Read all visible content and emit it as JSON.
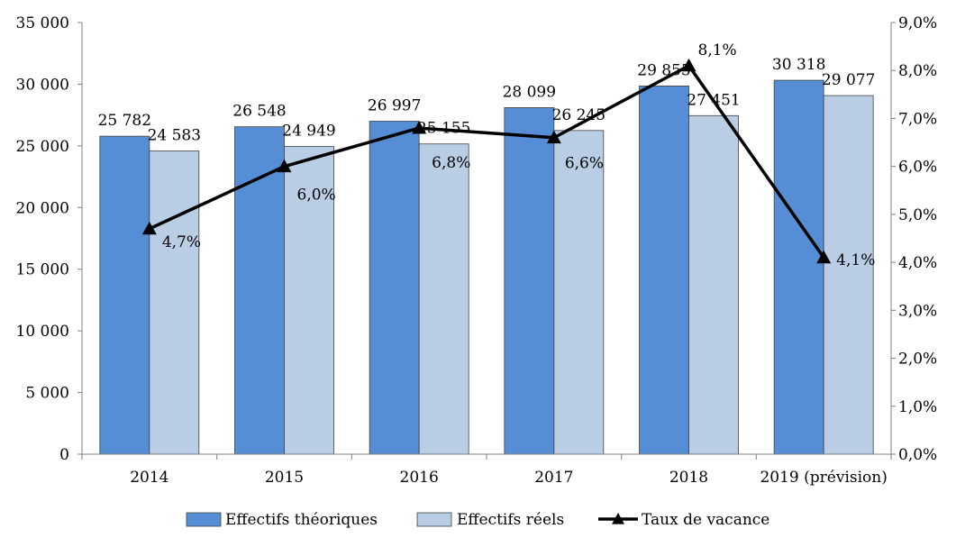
{
  "chart_data": {
    "type": "bar",
    "categories": [
      "2014",
      "2015",
      "2016",
      "2017",
      "2018",
      "2019 (prévision)"
    ],
    "series": [
      {
        "name": "Effectifs théoriques",
        "kind": "bar",
        "axis": "left",
        "color": "#558ED5",
        "values": [
          25782,
          26548,
          26997,
          28099,
          29855,
          30318
        ],
        "labels": [
          "25 782",
          "26 548",
          "26 997",
          "28 099",
          "29 855",
          "30 318"
        ]
      },
      {
        "name": "Effectifs réels",
        "kind": "bar",
        "axis": "left",
        "color": "#B9CDE5",
        "values": [
          24583,
          24949,
          25155,
          26245,
          27451,
          29077
        ],
        "labels": [
          "24 583",
          "24 949",
          "25 155",
          "26 245",
          "27 451",
          "29 077"
        ]
      },
      {
        "name": "Taux de vacance",
        "kind": "line",
        "axis": "right",
        "color": "#000000",
        "marker": "triangle",
        "values": [
          4.7,
          6.0,
          6.8,
          6.6,
          8.1,
          4.1
        ],
        "labels": [
          "4,7%",
          "6,0%",
          "6,8%",
          "6,6%",
          "8,1%",
          "4,1%"
        ]
      }
    ],
    "y_left": {
      "min": 0,
      "max": 35000,
      "step": 5000,
      "tick_labels": [
        "0",
        "5 000",
        "10 000",
        "15 000",
        "20 000",
        "25 000",
        "30 000",
        "35 000"
      ]
    },
    "y_right": {
      "min": 0,
      "max": 9,
      "step": 1,
      "tick_labels": [
        "0,0%",
        "1,0%",
        "2,0%",
        "3,0%",
        "4,0%",
        "5,0%",
        "6,0%",
        "7,0%",
        "8,0%",
        "9,0%"
      ]
    },
    "grid": false,
    "legend_position": "bottom"
  }
}
